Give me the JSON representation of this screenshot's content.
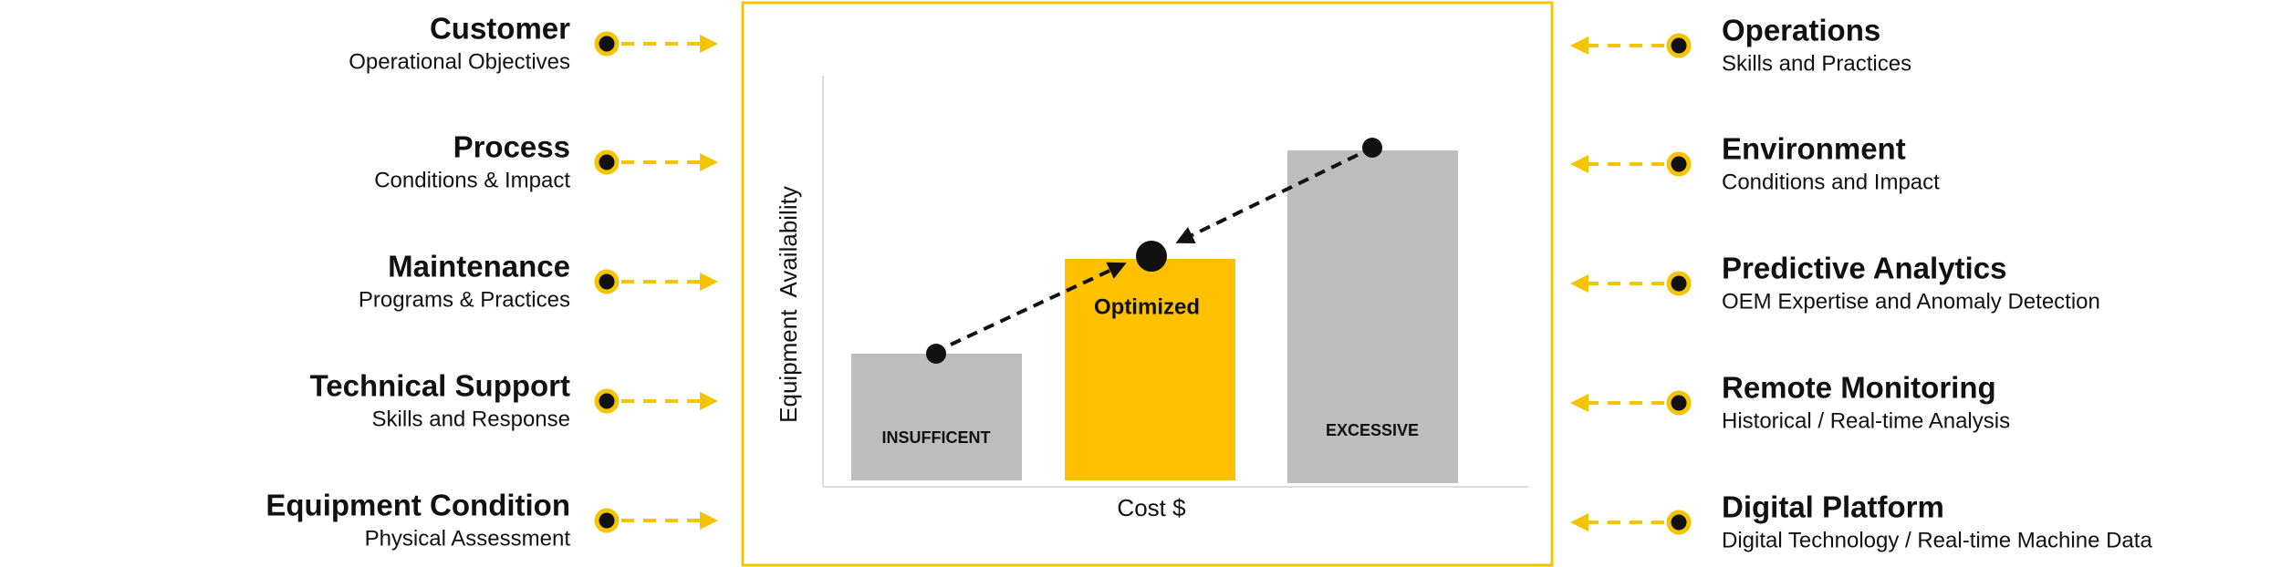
{
  "left": [
    {
      "title": "Customer",
      "subtitle": "Operational Objectives"
    },
    {
      "title": "Process",
      "subtitle": "Conditions & Impact"
    },
    {
      "title": "Maintenance",
      "subtitle": "Programs & Practices"
    },
    {
      "title": "Technical Support",
      "subtitle": "Skills and Response"
    },
    {
      "title": "Equipment Condition",
      "subtitle": "Physical Assessment"
    }
  ],
  "right": [
    {
      "title": "Operations",
      "subtitle": "Skills and Practices"
    },
    {
      "title": "Environment",
      "subtitle": "Conditions and Impact"
    },
    {
      "title": "Predictive Analytics",
      "subtitle": "OEM Expertise and Anomaly Detection"
    },
    {
      "title": "Remote Monitoring",
      "subtitle": "Historical / Real-time Analysis"
    },
    {
      "title": "Digital Platform",
      "subtitle": "Digital Technology / Real-time Machine Data"
    }
  ],
  "diagram": {
    "y_label": "Equipment  Availability",
    "x_label": "Cost $",
    "bars": [
      "INSUFFICENT",
      "Optimized",
      "EXCESSIVE"
    ]
  }
}
